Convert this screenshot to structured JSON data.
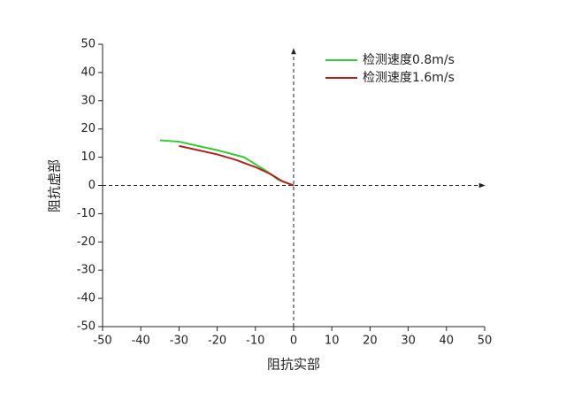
{
  "chart_data": {
    "type": "line",
    "x_label": "阻抗实部",
    "y_label": "阻抗虚部",
    "xlim": [
      -50,
      50
    ],
    "ylim": [
      -50,
      50
    ],
    "xticks": [
      -50,
      -40,
      -30,
      -20,
      -10,
      0,
      10,
      20,
      30,
      40,
      50
    ],
    "yticks": [
      -50,
      -40,
      -30,
      -20,
      -10,
      0,
      10,
      20,
      30,
      40,
      50
    ],
    "legend": "upper right",
    "series": [
      {
        "name": "检测速度0.8m/s",
        "color": "#33cc33",
        "x": [
          -35,
          -30,
          -25,
          -20,
          -13,
          -10,
          -7,
          -4,
          -1,
          0
        ],
        "values": [
          16,
          15.5,
          14,
          12.5,
          10,
          7.5,
          5,
          2,
          0.5,
          0
        ]
      },
      {
        "name": "检测速度1.6m/s",
        "color": "#b22222",
        "x": [
          -30,
          -25,
          -20,
          -15,
          -10,
          -6,
          -3,
          -1,
          0
        ],
        "values": [
          14,
          12.5,
          11,
          9,
          6.5,
          4,
          1.5,
          0.5,
          0
        ]
      }
    ]
  }
}
